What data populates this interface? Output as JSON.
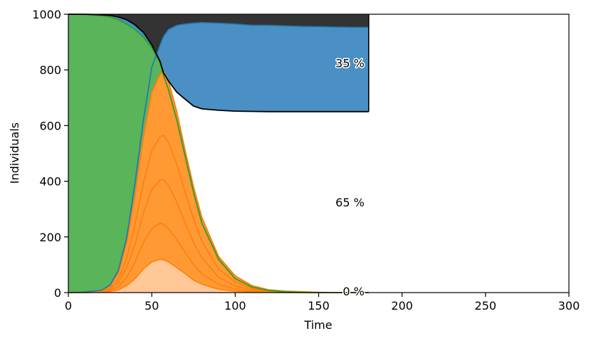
{
  "chart_data": {
    "type": "area",
    "xlabel": "Time",
    "ylabel": "Individuals",
    "xlim": [
      0,
      300
    ],
    "ylim": [
      0,
      1000
    ],
    "x_ticks": [
      0,
      50,
      100,
      150,
      200,
      250,
      300
    ],
    "y_ticks": [
      0,
      200,
      400,
      600,
      800,
      1000
    ],
    "grid": false,
    "stacking_order": "bottom-to-top: infected, recovered, dead; susceptible drawn behind and above infected",
    "x": [
      0,
      10,
      20,
      25,
      30,
      35,
      40,
      45,
      50,
      55,
      57,
      60,
      65,
      70,
      75,
      80,
      90,
      100,
      110,
      120,
      130,
      140,
      150,
      160,
      170,
      180
    ],
    "series": [
      {
        "name": "",
        "role": "susceptible",
        "color": "#5ab45a",
        "values": [
          1000,
          999,
          995,
          990,
          980,
          965,
          945,
          918,
          880,
          825,
          780,
          730,
          620,
          490,
          360,
          250,
          120,
          50,
          20,
          8,
          3,
          1,
          0,
          0,
          0,
          0
        ]
      },
      {
        "name": "",
        "role": "infected",
        "color": "#ff9933",
        "values": [
          0,
          2,
          8,
          25,
          70,
          180,
          350,
          560,
          720,
          785,
          795,
          760,
          650,
          510,
          380,
          270,
          130,
          60,
          25,
          10,
          5,
          3,
          1,
          0,
          0,
          0
        ]
      },
      {
        "name": "",
        "role": "infected-recovered boundary",
        "color": "#4a90c4",
        "values": [
          0,
          2,
          9,
          27,
          80,
          198,
          395,
          620,
          810,
          890,
          920,
          945,
          960,
          965,
          968,
          970,
          968,
          965,
          960,
          960,
          958,
          956,
          955,
          954,
          953,
          953
        ]
      },
      {
        "name": "",
        "role": "alive-dead boundary",
        "color": "#333333",
        "values": [
          1000,
          1000,
          998,
          996,
          990,
          980,
          962,
          935,
          890,
          830,
          790,
          760,
          720,
          695,
          670,
          660,
          655,
          652,
          651,
          650,
          650,
          650,
          650,
          650,
          650,
          650
        ]
      }
    ],
    "infected_substages": [
      [
        0,
        1,
        5,
        18,
        50,
        125,
        245,
        395,
        510,
        560,
        565,
        540,
        460,
        360,
        265,
        185,
        85,
        38,
        15,
        6,
        3,
        2,
        0,
        0,
        0,
        0
      ],
      [
        0,
        1,
        4,
        13,
        36,
        90,
        175,
        285,
        370,
        405,
        405,
        385,
        325,
        250,
        180,
        125,
        55,
        24,
        10,
        4,
        2,
        1,
        0,
        0,
        0,
        0
      ],
      [
        0,
        0,
        2,
        8,
        22,
        55,
        110,
        180,
        230,
        250,
        245,
        230,
        190,
        145,
        100,
        68,
        30,
        13,
        5,
        2,
        1,
        0,
        0,
        0,
        0,
        0
      ],
      [
        0,
        0,
        1,
        4,
        10,
        25,
        50,
        85,
        110,
        120,
        118,
        110,
        90,
        68,
        45,
        30,
        12,
        5,
        2,
        1,
        0,
        0,
        0,
        0,
        0,
        0
      ]
    ],
    "end_labels": [
      {
        "text": "35 %",
        "y": 825
      },
      {
        "text": "65 %",
        "y": 325
      },
      {
        "text": "0 %",
        "y": 5
      }
    ],
    "colors": {
      "susceptible": "#5ab45a",
      "susceptible_edge": "#2ca02c",
      "infected_light": "#ffc896",
      "infected": "#ff9933",
      "infected_edge": "#ff7f0e",
      "recovered": "#4a90c4",
      "recovered_edge": "#1f77b4",
      "dead": "#333333",
      "dead_edge": "#000000"
    }
  }
}
